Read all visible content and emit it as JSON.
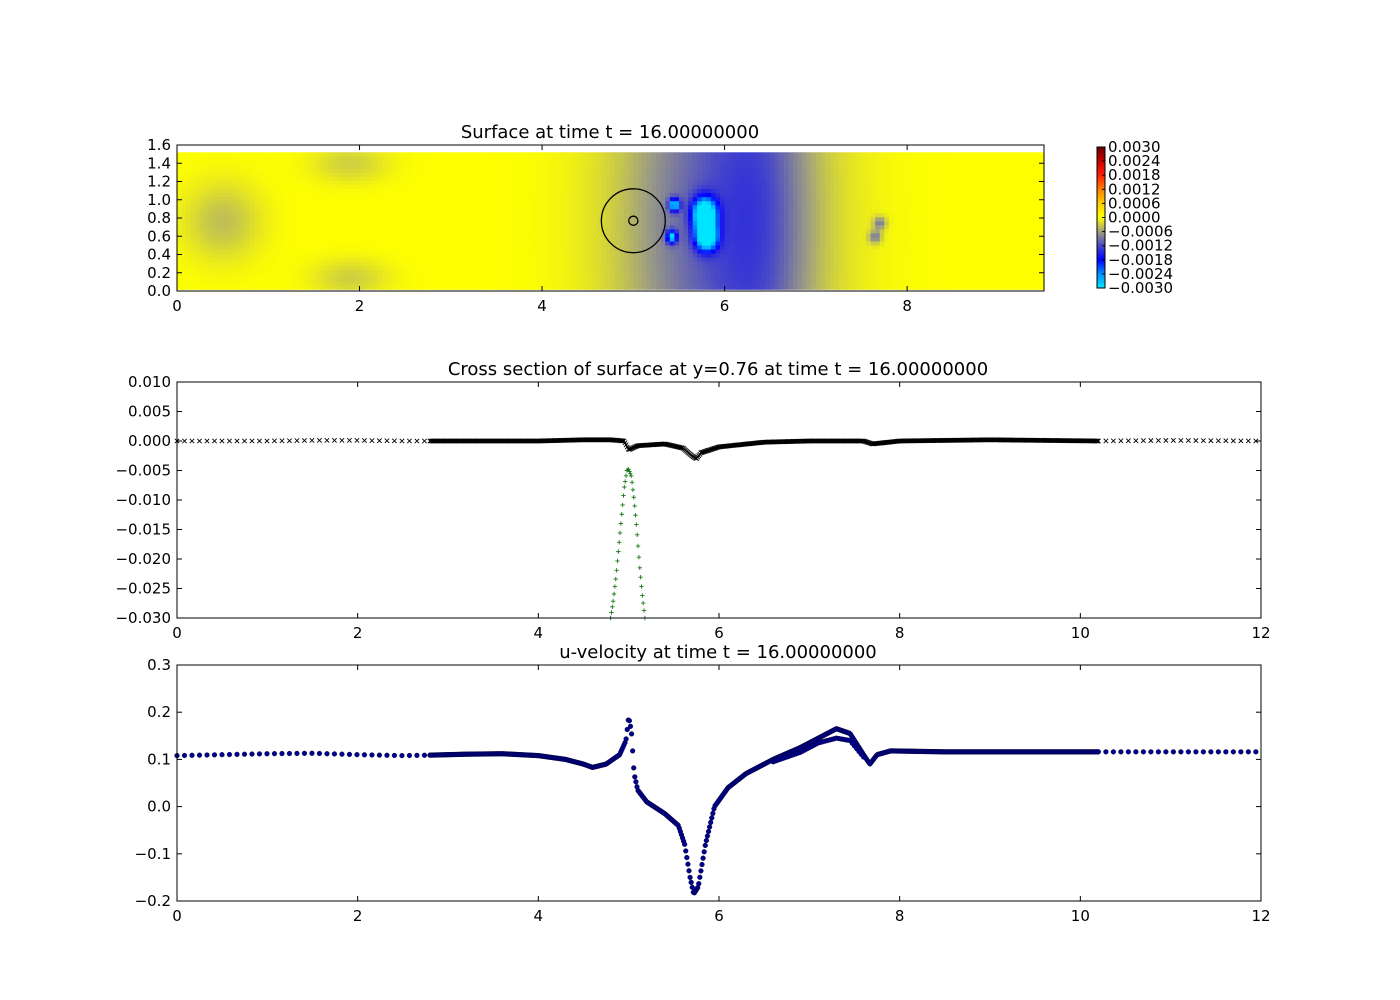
{
  "figure": {
    "colors": {
      "marker_black": "#000000",
      "marker_green": "#1a7a1a",
      "marker_blue": "#00008b"
    }
  },
  "chart_data": [
    {
      "type": "heatmap",
      "title": "Surface at time t =    16.00000000",
      "xlim": [
        0,
        9.5
      ],
      "ylim": [
        0,
        1.6
      ],
      "xticks": [
        0,
        2,
        4,
        6,
        8
      ],
      "xtick_labels": [
        "0",
        "2",
        "4",
        "6",
        "8"
      ],
      "yticks": [
        0,
        0.2,
        0.4,
        0.6,
        0.8,
        1.0,
        1.2,
        1.4,
        1.6
      ],
      "ytick_labels": [
        "0.0",
        "0.2",
        "0.4",
        "0.6",
        "0.8",
        "1.0",
        "1.2",
        "1.4",
        "1.6"
      ],
      "colorbar": {
        "range": [
          -0.003,
          0.003
        ],
        "ticks": [
          0.003,
          0.0024,
          0.0018,
          0.0012,
          0.0006,
          0.0,
          -0.0006,
          -0.0012,
          -0.0018,
          -0.0024,
          -0.003
        ],
        "tick_labels": [
          "0.0030",
          "0.0024",
          "0.0018",
          "0.0012",
          "0.0006",
          "0.0000",
          "−0.0006",
          "−0.0012",
          "−0.0018",
          "−0.0024",
          "−0.0030"
        ],
        "stops": [
          {
            "v": -0.003,
            "color": "#00e5ff"
          },
          {
            "v": -0.0024,
            "color": "#0090ff"
          },
          {
            "v": -0.0018,
            "color": "#0000ff"
          },
          {
            "v": -0.0012,
            "color": "#4848c8"
          },
          {
            "v": -0.0006,
            "color": "#a0a080"
          },
          {
            "v": 0.0,
            "color": "#ffff00"
          },
          {
            "v": 0.0006,
            "color": "#ffd000"
          },
          {
            "v": 0.0012,
            "color": "#ff8000"
          },
          {
            "v": 0.0018,
            "color": "#ff2000"
          },
          {
            "v": 0.0024,
            "color": "#cc0000"
          },
          {
            "v": 0.003,
            "color": "#660000"
          }
        ]
      },
      "domain_x": [
        0,
        9.5
      ],
      "domain_y": [
        0.02,
        1.52
      ],
      "background_value": 0.0,
      "features": [
        {
          "x": 5.78,
          "y": 0.85,
          "sx": 0.09,
          "sy": 0.12,
          "amp": -0.0031
        },
        {
          "x": 5.8,
          "y": 0.6,
          "sx": 0.08,
          "sy": 0.1,
          "amp": -0.0031
        },
        {
          "x": 5.45,
          "y": 0.95,
          "sx": 0.04,
          "sy": 0.05,
          "amp": -0.0022
        },
        {
          "x": 5.42,
          "y": 0.6,
          "sx": 0.04,
          "sy": 0.05,
          "amp": -0.0022
        },
        {
          "x": 5.95,
          "y": 0.77,
          "sx": 0.75,
          "sy": 2.0,
          "amp": -0.0011
        },
        {
          "x": 6.4,
          "y": 0.77,
          "sx": 0.35,
          "sy": 2.0,
          "amp": -0.0004
        },
        {
          "x": 7.7,
          "y": 0.75,
          "sx": 0.05,
          "sy": 0.05,
          "amp": -0.0008
        },
        {
          "x": 7.65,
          "y": 0.6,
          "sx": 0.05,
          "sy": 0.05,
          "amp": -0.0008
        },
        {
          "x": 0.5,
          "y": 0.77,
          "sx": 0.3,
          "sy": 0.3,
          "amp": -0.0004
        },
        {
          "x": 1.9,
          "y": 1.4,
          "sx": 0.3,
          "sy": 0.15,
          "amp": -0.0003
        },
        {
          "x": 1.9,
          "y": 0.15,
          "sx": 0.3,
          "sy": 0.15,
          "amp": -0.0003
        }
      ],
      "overlays": {
        "circles": [
          {
            "x": 5.0,
            "y": 0.77,
            "r": 0.35
          },
          {
            "x": 5.0,
            "y": 0.77,
            "r": 0.05
          }
        ]
      }
    },
    {
      "type": "scatter",
      "title": "Cross section of surface at y=0.76 at time t =    16.00000000",
      "xlim": [
        0,
        12
      ],
      "ylim": [
        -0.03,
        0.01
      ],
      "xticks": [
        0,
        2,
        4,
        6,
        8,
        10,
        12
      ],
      "xtick_labels": [
        "0",
        "2",
        "4",
        "6",
        "8",
        "10",
        "12"
      ],
      "yticks": [
        0.01,
        0.005,
        0.0,
        -0.005,
        -0.01,
        -0.015,
        -0.02,
        -0.025,
        -0.03
      ],
      "ytick_labels": [
        "0.010",
        "0.005",
        "0.000",
        "−0.005",
        "−0.010",
        "−0.015",
        "−0.020",
        "−0.025",
        "−0.030"
      ],
      "series": [
        {
          "marker": "x",
          "color": "#000000",
          "points": [
            [
              0,
              0
            ],
            [
              0.3,
              0
            ],
            [
              0.6,
              0
            ],
            [
              1,
              0
            ],
            [
              1.5,
              0.0001
            ],
            [
              2,
              0.0001
            ],
            [
              2.5,
              0
            ],
            [
              2.8,
              0
            ],
            [
              3.5,
              0
            ],
            [
              4,
              0
            ],
            [
              4.5,
              0.0002
            ],
            [
              4.8,
              0.0002
            ],
            [
              4.95,
              0
            ],
            [
              5.0,
              -0.0015
            ],
            [
              5.1,
              -0.0008
            ],
            [
              5.4,
              -0.0005
            ],
            [
              5.6,
              -0.0012
            ],
            [
              5.7,
              -0.0025
            ],
            [
              5.75,
              -0.003
            ],
            [
              5.8,
              -0.002
            ],
            [
              6,
              -0.001
            ],
            [
              6.5,
              -0.0002
            ],
            [
              7,
              0
            ],
            [
              7.6,
              0
            ],
            [
              7.7,
              -0.0005
            ],
            [
              8,
              0
            ],
            [
              9,
              0.0002
            ],
            [
              10.2,
              0
            ],
            [
              11,
              0.0001
            ],
            [
              12,
              0
            ]
          ],
          "dense_x": [
            2.8,
            10.2
          ]
        },
        {
          "marker": "+",
          "color": "#1a7a1a",
          "points": [
            [
              4.8,
              -0.03
            ],
            [
              4.83,
              -0.027
            ],
            [
              4.86,
              -0.023
            ],
            [
              4.89,
              -0.018
            ],
            [
              4.92,
              -0.013
            ],
            [
              4.95,
              -0.008
            ],
            [
              4.98,
              -0.005
            ],
            [
              5.0,
              -0.0048
            ],
            [
              5.03,
              -0.006
            ],
            [
              5.06,
              -0.01
            ],
            [
              5.09,
              -0.015
            ],
            [
              5.12,
              -0.021
            ],
            [
              5.15,
              -0.026
            ],
            [
              5.18,
              -0.03
            ]
          ]
        }
      ]
    },
    {
      "type": "scatter",
      "title": "u-velocity at time t =    16.00000000",
      "xlim": [
        0,
        12
      ],
      "ylim": [
        -0.2,
        0.3
      ],
      "xticks": [
        0,
        2,
        4,
        6,
        8,
        10,
        12
      ],
      "xtick_labels": [
        "0",
        "2",
        "4",
        "6",
        "8",
        "10",
        "12"
      ],
      "yticks": [
        0.3,
        0.2,
        0.1,
        0.0,
        -0.1,
        -0.2
      ],
      "ytick_labels": [
        "0.3",
        "0.2",
        "0.1",
        "0.0",
        "−0.1",
        "−0.2"
      ],
      "series": [
        {
          "marker": "o",
          "color": "#00008b",
          "points": [
            [
              0,
              0.108
            ],
            [
              0.5,
              0.11
            ],
            [
              1,
              0.112
            ],
            [
              1.5,
              0.113
            ],
            [
              2,
              0.11
            ],
            [
              2.5,
              0.108
            ],
            [
              2.8,
              0.109
            ],
            [
              3.2,
              0.111
            ],
            [
              3.6,
              0.112
            ],
            [
              4.0,
              0.108
            ],
            [
              4.3,
              0.1
            ],
            [
              4.5,
              0.09
            ],
            [
              4.6,
              0.083
            ],
            [
              4.75,
              0.09
            ],
            [
              4.9,
              0.11
            ],
            [
              4.97,
              0.14
            ],
            [
              5.0,
              0.19
            ],
            [
              5.03,
              0.16
            ],
            [
              5.06,
              0.07
            ],
            [
              5.1,
              0.035
            ],
            [
              5.2,
              0.01
            ],
            [
              5.4,
              -0.015
            ],
            [
              5.55,
              -0.04
            ],
            [
              5.62,
              -0.08
            ],
            [
              5.68,
              -0.15
            ],
            [
              5.72,
              -0.185
            ],
            [
              5.77,
              -0.17
            ],
            [
              5.85,
              -0.08
            ],
            [
              5.95,
              0.0
            ],
            [
              6.1,
              0.04
            ],
            [
              6.3,
              0.07
            ],
            [
              6.6,
              0.1
            ],
            [
              6.9,
              0.125
            ],
            [
              7.1,
              0.145
            ],
            [
              7.3,
              0.165
            ],
            [
              7.45,
              0.155
            ],
            [
              7.6,
              0.11
            ],
            [
              7.67,
              0.09
            ],
            [
              7.75,
              0.11
            ],
            [
              7.9,
              0.118
            ],
            [
              8.5,
              0.116
            ],
            [
              9.5,
              0.116
            ],
            [
              10.2,
              0.116
            ],
            [
              11,
              0.116
            ],
            [
              12,
              0.116
            ]
          ],
          "dense_x": [
            2.8,
            10.2
          ]
        },
        {
          "marker": "o",
          "color": "#00008b",
          "points": [
            [
              6.6,
              0.095
            ],
            [
              6.9,
              0.115
            ],
            [
              7.1,
              0.135
            ],
            [
              7.3,
              0.145
            ],
            [
              7.45,
              0.14
            ],
            [
              7.6,
              0.105
            ]
          ]
        }
      ]
    }
  ]
}
